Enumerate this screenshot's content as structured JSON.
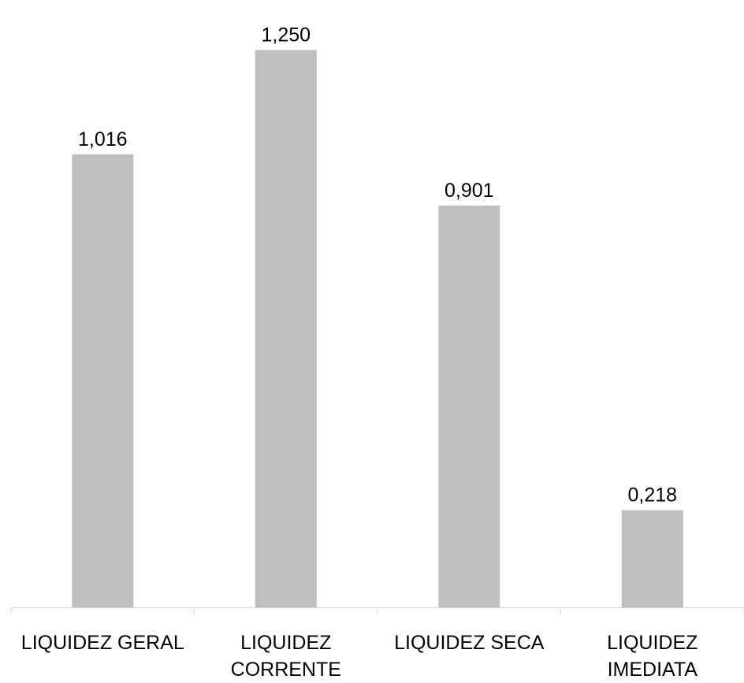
{
  "chart_data": {
    "type": "bar",
    "categories": [
      [
        "LIQUIDEZ GERAL"
      ],
      [
        "LIQUIDEZ",
        "CORRENTE"
      ],
      [
        "LIQUIDEZ SECA"
      ],
      [
        "LIQUIDEZ",
        "IMEDIATA"
      ]
    ],
    "values": [
      1.016,
      1.25,
      0.901,
      0.218
    ],
    "data_labels": [
      "1,016",
      "1,250",
      "0,901",
      "0,218"
    ],
    "title": "",
    "xlabel": "",
    "ylabel": "",
    "ylim": [
      0,
      1.3
    ],
    "grid": false,
    "legend": "none",
    "bar_color": "#bfbfbf",
    "axis_color": "#d9d9d9",
    "text_color": "#000000"
  }
}
